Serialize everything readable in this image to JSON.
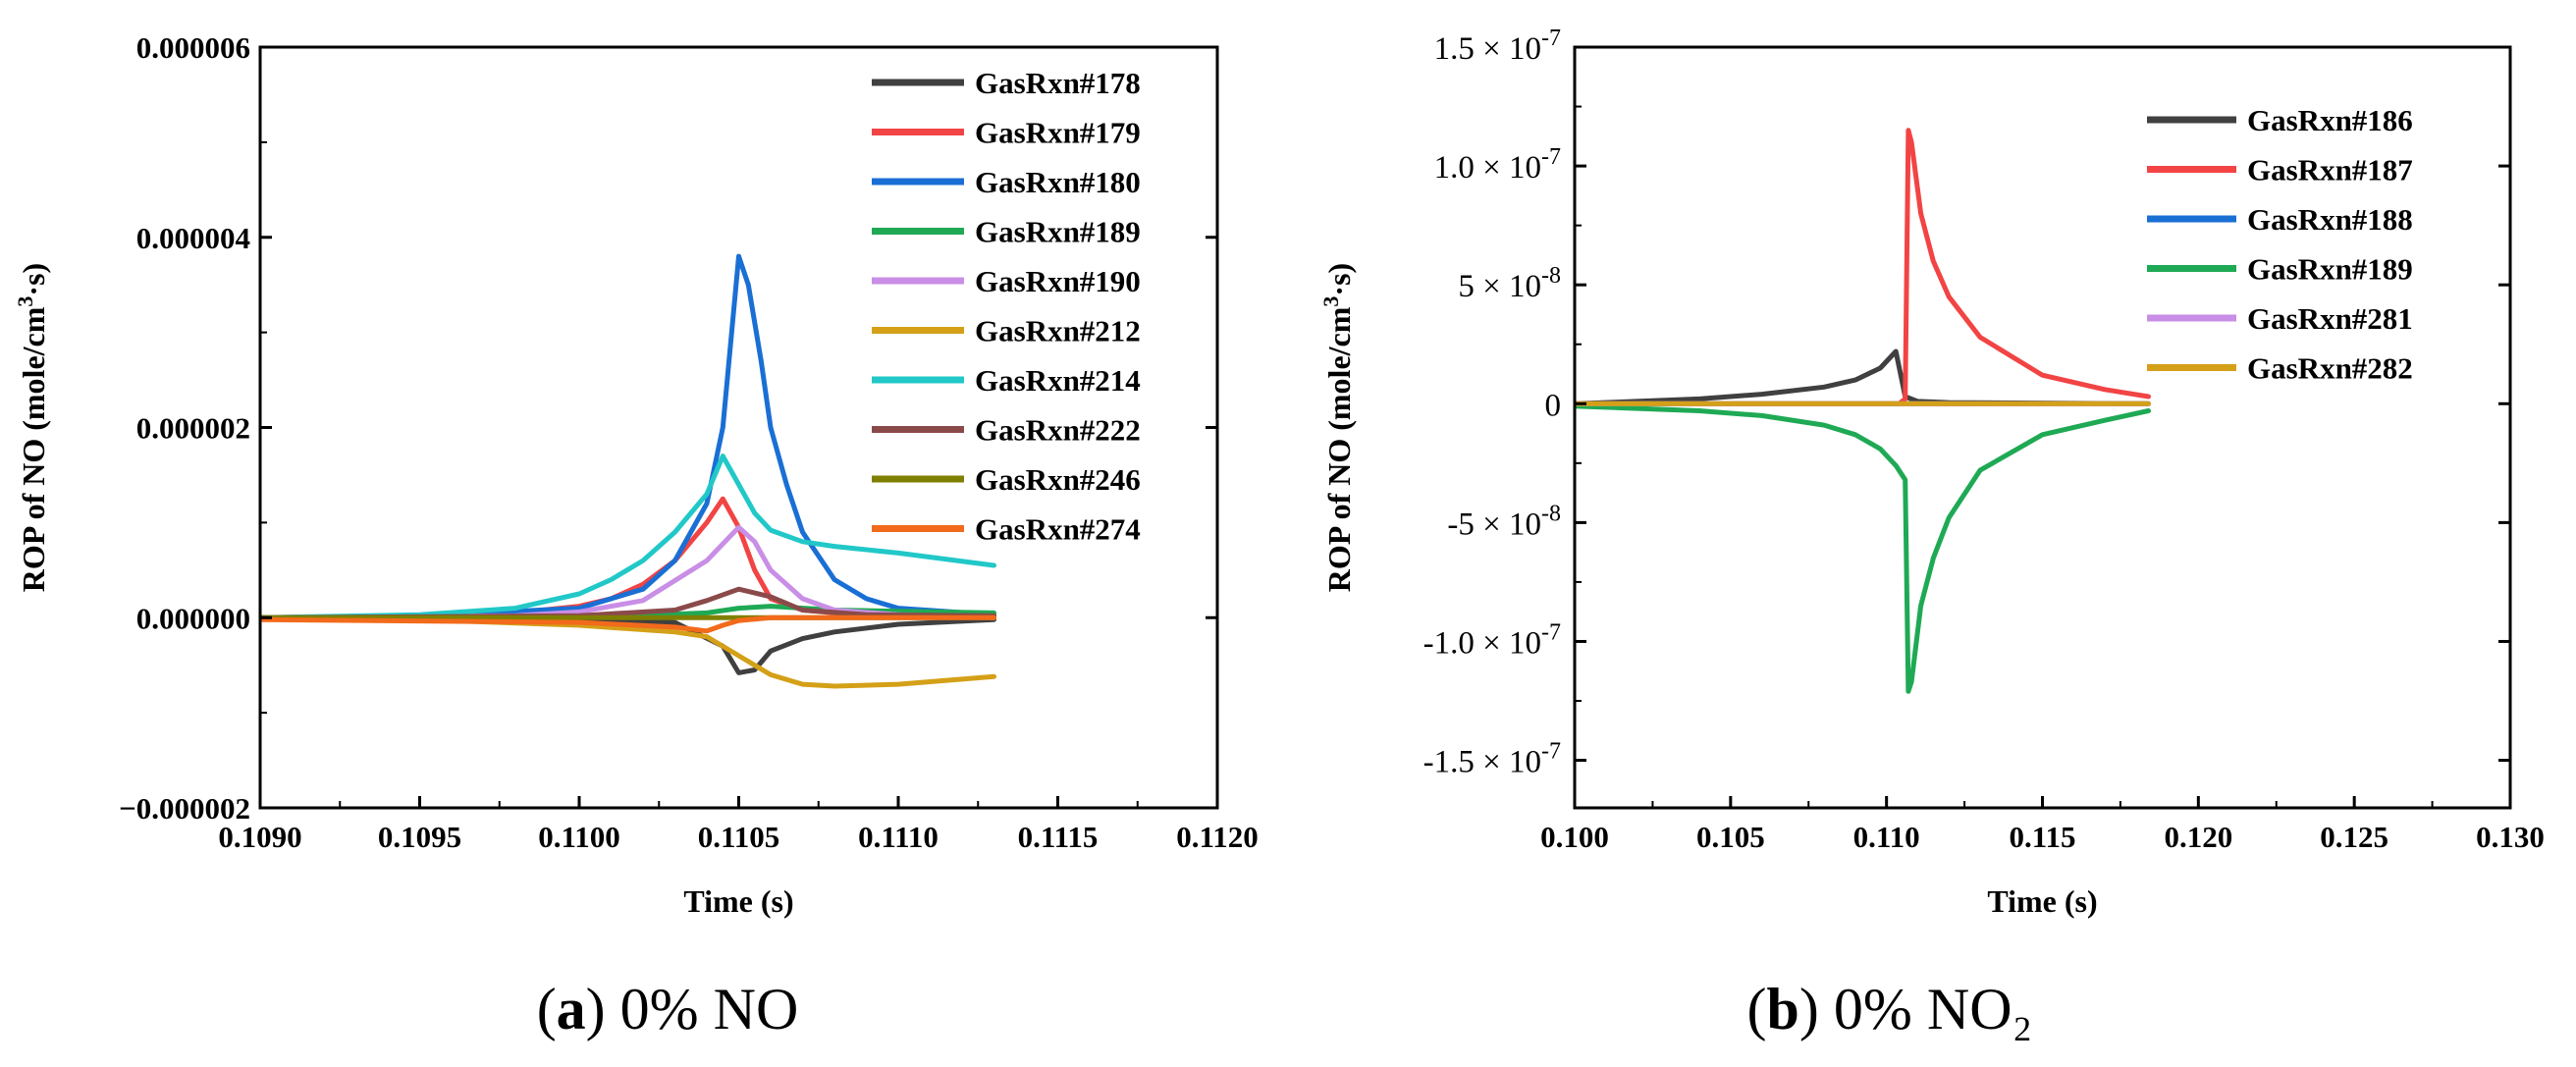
{
  "chart_data": [
    {
      "type": "line",
      "caption_letter": "a",
      "caption_text": " 0% NO",
      "xlabel": "Time (s)",
      "ylabel_prefix": "ROP of NO (mole/cm",
      "ylabel_sup": "3",
      "ylabel_suffix": "·s)",
      "xlim": [
        0.109,
        0.112
      ],
      "ylim": [
        -2e-06,
        6e-06
      ],
      "xticks": [
        0.109,
        0.1095,
        0.11,
        0.1105,
        0.111,
        0.1115,
        0.112
      ],
      "xtick_labels": [
        "0.1090",
        "0.1095",
        "0.1100",
        "0.1105",
        "0.1110",
        "0.1115",
        "0.1120"
      ],
      "yticks": [
        -2e-06,
        0,
        2e-06,
        4e-06,
        6e-06
      ],
      "ytick_labels": [
        "−0.000002",
        "0.000000",
        "0.000002",
        "0.000004",
        "0.000006"
      ],
      "legend_position": "top-right",
      "series": [
        {
          "name": "GasRxn#178",
          "color": "#404040",
          "x": [
            0.109,
            0.11,
            0.1103,
            0.11045,
            0.1105,
            0.11055,
            0.1106,
            0.1107,
            0.1108,
            0.111,
            0.1113
          ],
          "values": [
            0,
            -2e-08,
            -5e-08,
            -3e-07,
            -5.8e-07,
            -5.5e-07,
            -3.5e-07,
            -2.2e-07,
            -1.5e-07,
            -7e-08,
            -2e-08
          ]
        },
        {
          "name": "GasRxn#179",
          "color": "#f24444",
          "x": [
            0.109,
            0.1095,
            0.1098,
            0.11,
            0.1101,
            0.1102,
            0.1103,
            0.1104,
            0.11045,
            0.1105,
            0.11055,
            0.1106,
            0.1107,
            0.1109,
            0.1113
          ],
          "values": [
            0,
            2e-08,
            5e-08,
            1.2e-07,
            2e-07,
            3.5e-07,
            6e-07,
            1e-06,
            1.25e-06,
            9.5e-07,
            5e-07,
            2e-07,
            8e-08,
            2e-08,
            2e-08
          ]
        },
        {
          "name": "GasRxn#180",
          "color": "#1a6fd4",
          "x": [
            0.109,
            0.1095,
            0.11,
            0.1102,
            0.1103,
            0.1104,
            0.11045,
            0.1105,
            0.11053,
            0.11057,
            0.1106,
            0.11065,
            0.1107,
            0.1108,
            0.1109,
            0.111,
            0.1113
          ],
          "values": [
            0,
            2e-08,
            1e-07,
            3e-07,
            6e-07,
            1.2e-06,
            2e-06,
            3.8e-06,
            3.5e-06,
            2.7e-06,
            2e-06,
            1.4e-06,
            9e-07,
            4e-07,
            2e-07,
            1e-07,
            3e-08
          ]
        },
        {
          "name": "GasRxn#189",
          "color": "#1fa955",
          "x": [
            0.109,
            0.11,
            0.1104,
            0.1105,
            0.1106,
            0.1108,
            0.1113
          ],
          "values": [
            0,
            0,
            5e-08,
            1e-07,
            1.2e-07,
            8e-08,
            5e-08
          ]
        },
        {
          "name": "GasRxn#190",
          "color": "#c98ee6",
          "x": [
            0.109,
            0.1098,
            0.11,
            0.1102,
            0.1104,
            0.1105,
            0.11055,
            0.1106,
            0.1107,
            0.1108,
            0.111,
            0.1113
          ],
          "values": [
            0,
            2e-08,
            6e-08,
            1.8e-07,
            6e-07,
            9.5e-07,
            8e-07,
            5e-07,
            2e-07,
            8e-08,
            3e-08,
            0
          ]
        },
        {
          "name": "GasRxn#212",
          "color": "#d4a017",
          "x": [
            0.109,
            0.1095,
            0.11,
            0.1103,
            0.1104,
            0.1105,
            0.1106,
            0.1107,
            0.1108,
            0.111,
            0.1113
          ],
          "values": [
            0,
            -2e-08,
            -8e-08,
            -1.5e-07,
            -2e-07,
            -4e-07,
            -6e-07,
            -7e-07,
            -7.2e-07,
            -7e-07,
            -6.2e-07
          ]
        },
        {
          "name": "GasRxn#214",
          "color": "#22c8c8",
          "x": [
            0.109,
            0.1095,
            0.1098,
            0.11,
            0.1101,
            0.1102,
            0.1103,
            0.1104,
            0.11045,
            0.1105,
            0.11055,
            0.1106,
            0.1107,
            0.1108,
            0.111,
            0.1113
          ],
          "values": [
            0,
            3e-08,
            1e-07,
            2.5e-07,
            4e-07,
            6e-07,
            9e-07,
            1.3e-06,
            1.7e-06,
            1.4e-06,
            1.1e-06,
            9.2e-07,
            8e-07,
            7.5e-07,
            6.8e-07,
            5.5e-07
          ]
        },
        {
          "name": "GasRxn#222",
          "color": "#8b4a4a",
          "x": [
            0.109,
            0.11,
            0.1103,
            0.1104,
            0.1105,
            0.1106,
            0.1107,
            0.1109,
            0.1113
          ],
          "values": [
            0,
            2e-08,
            8e-08,
            1.8e-07,
            3e-07,
            2.2e-07,
            8e-08,
            3e-08,
            2e-08
          ]
        },
        {
          "name": "GasRxn#246",
          "color": "#808000",
          "x": [
            0.109,
            0.1113
          ],
          "values": [
            0,
            0
          ]
        },
        {
          "name": "GasRxn#274",
          "color": "#f26a1b",
          "x": [
            0.109,
            0.11,
            0.1103,
            0.1104,
            0.11045,
            0.1105,
            0.1106,
            0.1113
          ],
          "values": [
            -2e-08,
            -5e-08,
            -1e-07,
            -1.4e-07,
            -8e-08,
            -3e-08,
            0,
            0
          ]
        }
      ]
    },
    {
      "type": "line",
      "caption_letter": "b",
      "caption_text": " 0% NO₂",
      "xlabel": "Time (s)",
      "ylabel_prefix": "ROP of NO (mole/cm",
      "ylabel_sup": "3",
      "ylabel_suffix": "·s)",
      "xlim": [
        0.1,
        0.13
      ],
      "ylim": [
        -1.7e-07,
        1.5e-07
      ],
      "xticks": [
        0.1,
        0.105,
        0.11,
        0.115,
        0.12,
        0.125,
        0.13
      ],
      "xtick_labels": [
        "0.100",
        "0.105",
        "0.110",
        "0.115",
        "0.120",
        "0.125",
        "0.130"
      ],
      "yticks": [
        1.5e-07,
        1e-07,
        5e-08,
        0,
        -5e-08,
        -1e-07,
        -1.5e-07
      ],
      "ytick_mantissas": [
        "1.5",
        "1.0",
        "5",
        "0",
        "-5",
        "-1.0",
        "-1.5"
      ],
      "ytick_times": " × 10",
      "ytick_exponents": [
        "-7",
        "-7",
        "-8",
        "",
        "-8",
        "-7",
        "-7"
      ],
      "legend_position": "top-right",
      "series": [
        {
          "name": "GasRxn#186",
          "color": "#404040",
          "x": [
            0.1,
            0.104,
            0.106,
            0.108,
            0.109,
            0.1098,
            0.1103,
            0.1106,
            0.111,
            0.112,
            0.1184
          ],
          "values": [
            0,
            2e-09,
            4e-09,
            7e-09,
            1e-08,
            1.5e-08,
            2.2e-08,
            3e-09,
            1e-09,
            5e-10,
            0
          ]
        },
        {
          "name": "GasRxn#187",
          "color": "#f24444",
          "x": [
            0.1,
            0.1104,
            0.1106,
            0.1107,
            0.1108,
            0.1111,
            0.1115,
            0.112,
            0.113,
            0.115,
            0.117,
            0.1184
          ],
          "values": [
            0,
            0,
            2e-09,
            1.15e-07,
            1.1e-07,
            8e-08,
            6e-08,
            4.5e-08,
            2.8e-08,
            1.2e-08,
            6e-09,
            3e-09
          ]
        },
        {
          "name": "GasRxn#188",
          "color": "#1a6fd4",
          "x": [
            0.1,
            0.1184
          ],
          "values": [
            0,
            0
          ]
        },
        {
          "name": "GasRxn#189",
          "color": "#1fa955",
          "x": [
            0.1,
            0.104,
            0.106,
            0.108,
            0.109,
            0.1098,
            0.1103,
            0.1106,
            0.1107,
            0.1108,
            0.1111,
            0.1115,
            0.112,
            0.113,
            0.115,
            0.117,
            0.1184
          ],
          "values": [
            -1e-09,
            -3e-09,
            -5e-09,
            -9e-09,
            -1.3e-08,
            -1.9e-08,
            -2.6e-08,
            -3.2e-08,
            -1.21e-07,
            -1.17e-07,
            -8.5e-08,
            -6.5e-08,
            -4.8e-08,
            -2.8e-08,
            -1.3e-08,
            -7e-09,
            -3e-09
          ]
        },
        {
          "name": "GasRxn#281",
          "color": "#c98ee6",
          "x": [
            0.1,
            0.1184
          ],
          "values": [
            0,
            0
          ]
        },
        {
          "name": "GasRxn#282",
          "color": "#d4a017",
          "x": [
            0.1,
            0.1184
          ],
          "values": [
            0,
            0
          ]
        }
      ]
    }
  ]
}
